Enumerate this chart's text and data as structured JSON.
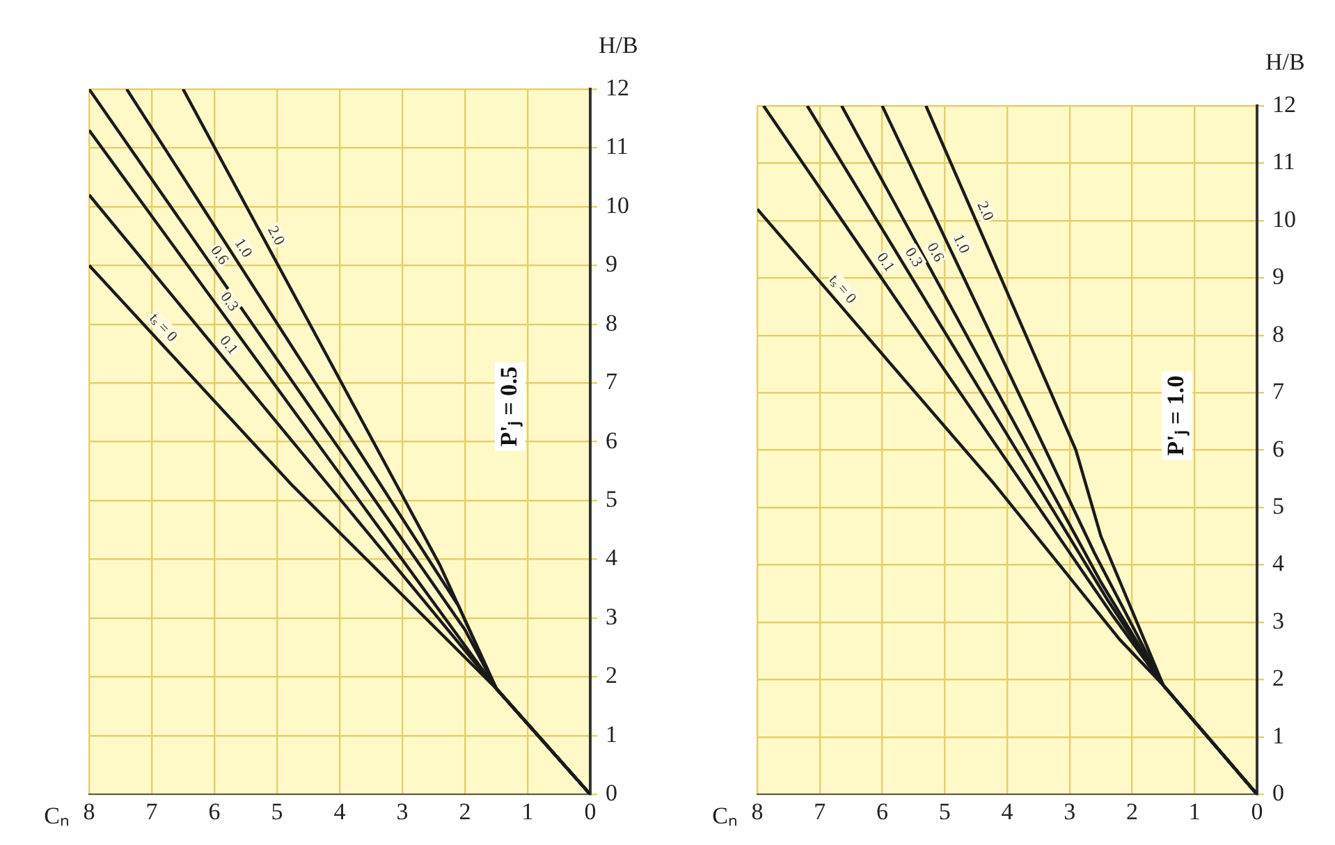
{
  "chart_data": [
    {
      "type": "line",
      "xlabel": "Cₙ",
      "ylabel": "H/B",
      "xlim": [
        8,
        0
      ],
      "xticks": [
        8,
        7,
        6,
        5,
        4,
        3,
        2,
        1,
        0
      ],
      "ylim": [
        0,
        12
      ],
      "yticks": [
        0,
        1,
        2,
        3,
        4,
        5,
        6,
        7,
        8,
        9,
        10,
        11,
        12
      ],
      "grid": true,
      "annotations": [
        "P'ⱼ = 0.5"
      ],
      "series": [
        {
          "name": "tₛ = 0",
          "color": "#1a1a1a",
          "x": [
            0,
            1.5,
            4.75,
            8
          ],
          "values": [
            0,
            1.8,
            5.25,
            9.0
          ]
        },
        {
          "name": "0.1",
          "color": "#1a1a1a",
          "x": [
            0,
            1.5,
            8
          ],
          "values": [
            0,
            1.8,
            10.2
          ]
        },
        {
          "name": "0.3",
          "color": "#1a1a1a",
          "x": [
            0,
            1.5,
            8
          ],
          "values": [
            0,
            1.8,
            11.3
          ]
        },
        {
          "name": "0.6",
          "color": "#1a1a1a",
          "x": [
            0,
            1.5,
            2.0,
            8
          ],
          "values": [
            0,
            1.8,
            2.8,
            12
          ]
        },
        {
          "name": "1.0",
          "color": "#1a1a1a",
          "x": [
            0,
            1.5,
            2.1,
            7.4
          ],
          "values": [
            0,
            1.8,
            3.2,
            12
          ]
        },
        {
          "name": "2.0",
          "color": "#1a1a1a",
          "x": [
            0,
            1.5,
            2.4,
            6.5
          ],
          "values": [
            0,
            1.8,
            3.9,
            12
          ]
        }
      ]
    },
    {
      "type": "line",
      "xlabel": "Cₙ",
      "ylabel": "H/B",
      "xlim": [
        8,
        0
      ],
      "xticks": [
        8,
        7,
        6,
        5,
        4,
        3,
        2,
        1,
        0
      ],
      "ylim": [
        0,
        12
      ],
      "yticks": [
        0,
        1,
        2,
        3,
        4,
        5,
        6,
        7,
        8,
        9,
        10,
        11,
        12
      ],
      "grid": true,
      "annotations": [
        "P'ⱼ = 1.0"
      ],
      "series": [
        {
          "name": "tₛ = 0",
          "color": "#1a1a1a",
          "x": [
            0,
            1.5,
            2.2,
            4.2,
            8
          ],
          "values": [
            0,
            1.9,
            2.7,
            5.4,
            10.2
          ]
        },
        {
          "name": "0.1",
          "color": "#1a1a1a",
          "x": [
            0,
            1.5,
            2.3,
            7.9
          ],
          "values": [
            0,
            1.9,
            3.1,
            12
          ]
        },
        {
          "name": "0.3",
          "color": "#1a1a1a",
          "x": [
            0,
            1.5,
            2.4,
            7.2
          ],
          "values": [
            0,
            1.9,
            3.4,
            12
          ]
        },
        {
          "name": "0.6",
          "color": "#1a1a1a",
          "x": [
            0,
            1.5,
            2.5,
            6.65
          ],
          "values": [
            0,
            1.9,
            3.7,
            12
          ]
        },
        {
          "name": "1.0",
          "color": "#1a1a1a",
          "x": [
            0,
            1.5,
            2.6,
            6.0
          ],
          "values": [
            0,
            1.9,
            4.2,
            12
          ]
        },
        {
          "name": "2.0",
          "color": "#1a1a1a",
          "x": [
            0,
            1.5,
            2.5,
            2.9,
            5.3
          ],
          "values": [
            0,
            1.9,
            4.5,
            6.0,
            12
          ]
        }
      ]
    }
  ]
}
